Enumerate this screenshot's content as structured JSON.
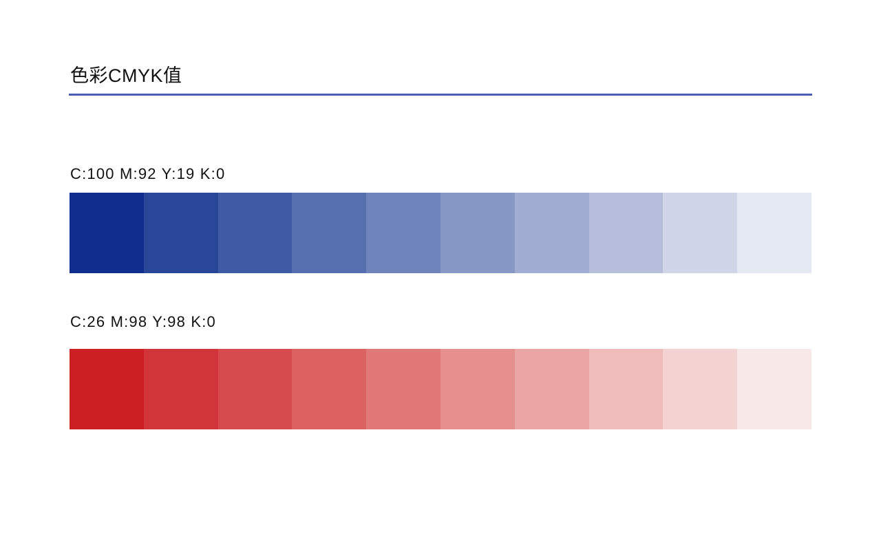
{
  "header": {
    "title": "色彩CMYK值",
    "rule_color": "#4a5db0"
  },
  "palettes": [
    {
      "label": "C:100 M:92 Y:19 K:0",
      "colors": [
        "#0f2e8e",
        "#2a4699",
        "#3f5ba6",
        "#566fae",
        "#6f84bb",
        "#8898c4",
        "#a1add2",
        "#b7bedb",
        "#d0d5e7",
        "#e5e9f3"
      ]
    },
    {
      "label": "C:26 M:98 Y:98 K:0",
      "colors": [
        "#cc1f24",
        "#d13539",
        "#d64b4d",
        "#dc6262",
        "#e17878",
        "#e58f8f",
        "#eaa5a5",
        "#efbbbb",
        "#f5d2d2",
        "#f9e8e8"
      ]
    }
  ]
}
